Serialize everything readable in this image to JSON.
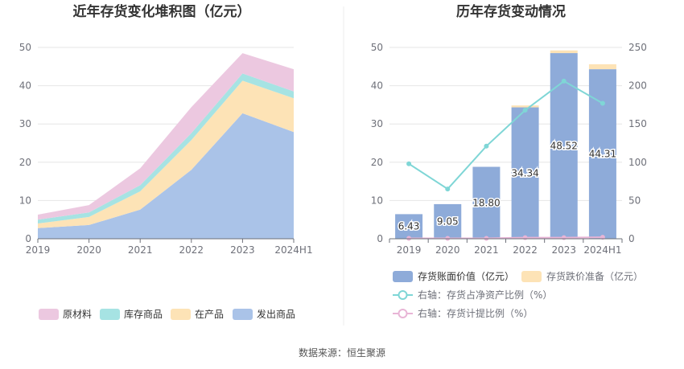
{
  "chart_data": [
    {
      "type": "area",
      "stacked": true,
      "title": "近年存货变化堆积图（亿元）",
      "categories": [
        "2019",
        "2020",
        "2021",
        "2022",
        "2023",
        "2024H1"
      ],
      "ylim": [
        0,
        50
      ],
      "yticks": [
        "0",
        "10",
        "20",
        "30",
        "40",
        "50"
      ],
      "grid": true,
      "legend_position": "bottom",
      "series": [
        {
          "name": "发出商品",
          "values": [
            2.8,
            3.6,
            7.6,
            18.0,
            32.8,
            27.9
          ],
          "color": "#aac3e8"
        },
        {
          "name": "在产品",
          "values": [
            1.2,
            2.1,
            4.8,
            7.8,
            8.5,
            8.8
          ],
          "color": "#fde3b6"
        },
        {
          "name": "库存商品",
          "values": [
            1.0,
            1.2,
            1.6,
            1.8,
            1.9,
            1.8
          ],
          "color": "#a6e3e3"
        },
        {
          "name": "原材料",
          "values": [
            1.3,
            1.9,
            4.4,
            6.8,
            5.3,
            5.8
          ],
          "color": "#ecc8e0"
        }
      ]
    },
    {
      "type": "bar",
      "title": "历年存货变动情况",
      "categories": [
        "2019",
        "2020",
        "2021",
        "2022",
        "2023",
        "2024H1"
      ],
      "ylim": [
        0,
        50
      ],
      "yticks": [
        "0",
        "10",
        "20",
        "30",
        "40",
        "50"
      ],
      "y2lim": [
        0,
        250
      ],
      "y2ticks": [
        "0",
        "50",
        "100",
        "150",
        "200",
        "250"
      ],
      "grid": true,
      "legend_position": "bottom",
      "series": [
        {
          "name": "存货账面价值（亿元）",
          "kind": "bar",
          "axis": "left",
          "color": "#8eabd9",
          "values": [
            6.43,
            9.05,
            18.8,
            34.34,
            48.52,
            44.31
          ],
          "labels": [
            "6.43",
            "9.05",
            "18.80",
            "34.34",
            "48.52",
            "44.31"
          ]
        },
        {
          "name": "存货跌价准备（亿元）",
          "kind": "bar",
          "axis": "left",
          "color": "#fde3b6",
          "values": [
            0.0,
            0.0,
            0.0,
            0.5,
            0.7,
            1.3
          ]
        },
        {
          "name": "右轴：存货占净资产比例（%）",
          "kind": "line",
          "axis": "right",
          "color": "#7fd6d6",
          "values": [
            98,
            65,
            121,
            168,
            206,
            177
          ]
        },
        {
          "name": "右轴：存货计提比例（%）",
          "kind": "line",
          "axis": "right",
          "color": "#e8b5d6",
          "values": [
            0.5,
            0.5,
            0.5,
            1.5,
            1.5,
            2.0
          ]
        }
      ]
    }
  ],
  "footer": {
    "source": "数据来源：恒生聚源"
  }
}
